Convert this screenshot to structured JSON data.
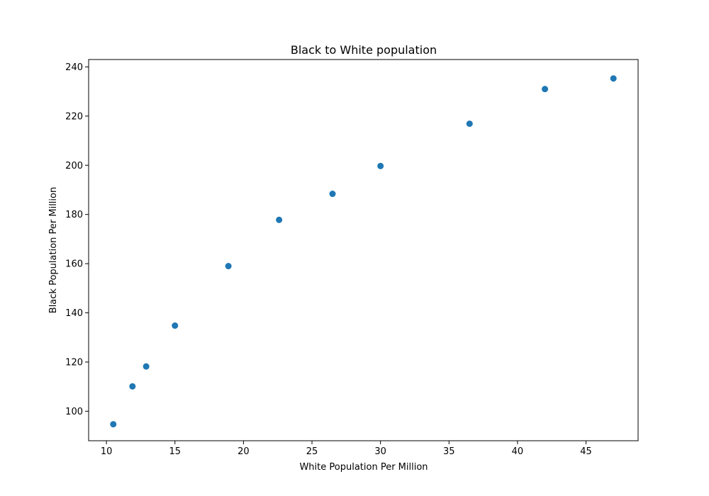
{
  "chart_data": {
    "type": "scatter",
    "title": "Black to White population",
    "xlabel": "White Population Per Million",
    "ylabel": "Black Population Per Million",
    "xlim": [
      8.7,
      48.8
    ],
    "ylim": [
      88,
      243
    ],
    "xticks": [
      10,
      15,
      20,
      25,
      30,
      35,
      40,
      45
    ],
    "yticks": [
      100,
      120,
      140,
      160,
      180,
      200,
      220,
      240
    ],
    "grid": false,
    "marker_color": "#1f77b4",
    "series": [
      {
        "x": [
          10.5,
          11.9,
          12.9,
          15.0,
          18.9,
          22.6,
          26.5,
          30.0,
          36.5,
          42.0,
          47.0
        ],
        "y": [
          94.7,
          110.1,
          118.2,
          134.8,
          159.0,
          177.8,
          188.4,
          199.7,
          216.9,
          231.0,
          235.3
        ]
      }
    ]
  }
}
